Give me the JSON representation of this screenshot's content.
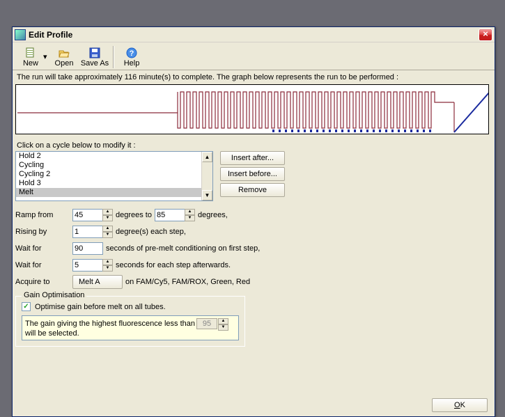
{
  "window": {
    "title": "Edit Profile"
  },
  "toolbar": {
    "new_label": "New",
    "open_label": "Open",
    "saveas_label": "Save As",
    "help_label": "Help"
  },
  "status": {
    "text": "The run will take approximately 116 minute(s) to complete. The graph below represents the run to be performed :"
  },
  "cycles": {
    "prompt": "Click on a cycle below to modify it :",
    "items": [
      "Hold 2",
      "Cycling",
      "Cycling 2",
      "Hold 3",
      "Melt"
    ],
    "selected_index": 4,
    "buttons": {
      "insert_after": "Insert after...",
      "insert_before": "Insert before...",
      "remove": "Remove"
    }
  },
  "params": {
    "ramp_from_label": "Ramp from",
    "ramp_from_value": "45",
    "degrees_to_label": "degrees to",
    "ramp_to_value": "85",
    "degrees_suffix": "degrees,",
    "rising_by_label": "Rising by",
    "rising_by_value": "1",
    "rising_by_suffix": "degree(s) each step,",
    "wait_for1_label": "Wait for",
    "wait_for1_value": "90",
    "wait_for1_suffix": "seconds of pre-melt conditioning on first step,",
    "wait_for2_label": "Wait for",
    "wait_for2_value": "5",
    "wait_for2_suffix": "seconds for each step afterwards.",
    "acquire_to_label": "Acquire to",
    "acquire_to_button": "Melt A",
    "acquire_to_suffix": "on FAM/Cy5, FAM/ROX, Green, Red"
  },
  "gain": {
    "legend": "Gain Optimisation",
    "checkbox_label": "Optimise gain before melt on all tubes.",
    "checked": true,
    "info_pre": "The gain giving the highest fluorescence less than",
    "info_value": "95",
    "info_post": "will be selected."
  },
  "footer": {
    "ok": "OK"
  },
  "colors": {
    "graph_line": "#8b2a3a",
    "graph_marker": "#1a2a9e",
    "graph_rise": "#1a2a9e",
    "background": "#ece9d8"
  }
}
